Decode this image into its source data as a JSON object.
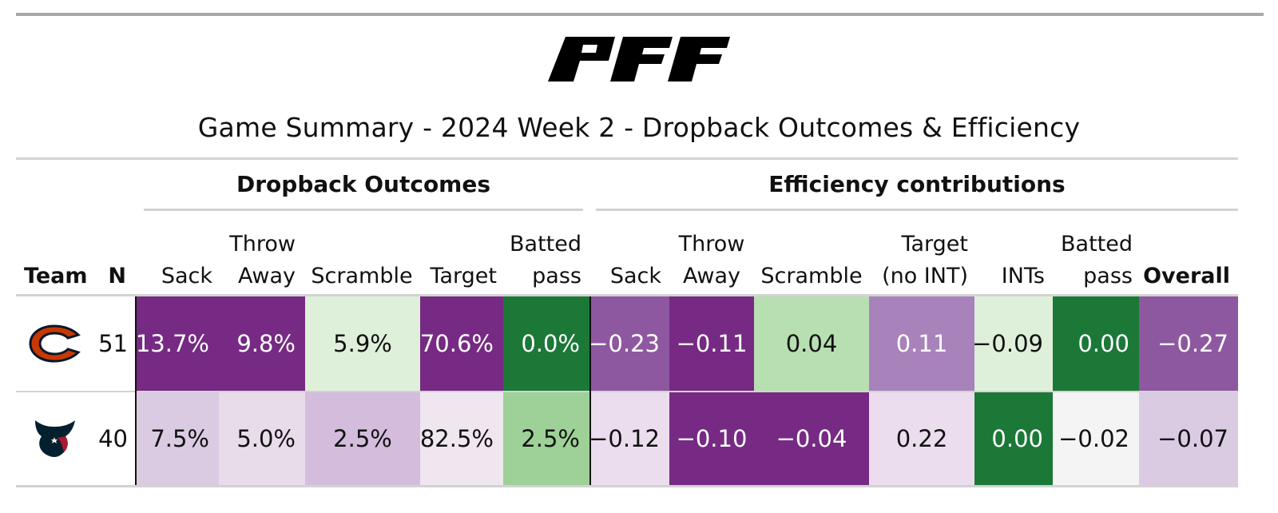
{
  "logo": {
    "name": "PFF",
    "color": "#000000"
  },
  "title": "Game Summary - 2024 Week 2 - Dropback Outcomes & Efficiency",
  "spanners": {
    "dropback": "Dropback Outcomes",
    "efficiency": "Efficiency contributions"
  },
  "columns": {
    "team": "Team",
    "n": "N",
    "sack": "Sack",
    "throw_away": {
      "line1": "Throw",
      "line2": "Away"
    },
    "scramble": "Scramble",
    "target": "Target",
    "batted": {
      "line1": "Batted",
      "line2": "pass"
    },
    "eff_sack": "Sack",
    "eff_throw_away": {
      "line1": "Throw",
      "line2": "Away"
    },
    "eff_scramble": "Scramble",
    "eff_target": {
      "line1": "Target",
      "line2": "(no INT)"
    },
    "eff_ints": "INTs",
    "eff_batted": {
      "line1": "Batted",
      "line2": "pass"
    },
    "overall": "Overall"
  },
  "rows": [
    {
      "team_icon": "chicago-bears-logo",
      "n": "51",
      "cells": [
        {
          "text": "13.7%",
          "bg": "#762a83",
          "fg": "#ffffff"
        },
        {
          "text": "9.8%",
          "bg": "#762a83",
          "fg": "#ffffff"
        },
        {
          "text": "5.9%",
          "bg": "#dff0da",
          "fg": "#111111"
        },
        {
          "text": "70.6%",
          "bg": "#762a83",
          "fg": "#ffffff"
        },
        {
          "text": "0.0%",
          "bg": "#1b7837",
          "fg": "#ffffff"
        },
        {
          "text": "−0.23",
          "bg": "#8e58a0",
          "fg": "#ffffff"
        },
        {
          "text": "−0.11",
          "bg": "#762a83",
          "fg": "#ffffff"
        },
        {
          "text": "0.04",
          "bg": "#b8dfb1",
          "fg": "#111111"
        },
        {
          "text": "0.11",
          "bg": "#a882ba",
          "fg": "#ffffff"
        },
        {
          "text": "−0.09",
          "bg": "#dff0da",
          "fg": "#111111"
        },
        {
          "text": "0.00",
          "bg": "#1b7837",
          "fg": "#ffffff"
        },
        {
          "text": "−0.27",
          "bg": "#8e58a0",
          "fg": "#ffffff"
        }
      ]
    },
    {
      "team_icon": "houston-texans-logo",
      "n": "40",
      "cells": [
        {
          "text": "7.5%",
          "bg": "#dacbe3",
          "fg": "#111111"
        },
        {
          "text": "5.0%",
          "bg": "#e8dbea",
          "fg": "#111111"
        },
        {
          "text": "2.5%",
          "bg": "#d3bcdc",
          "fg": "#111111"
        },
        {
          "text": "82.5%",
          "bg": "#efe6f0",
          "fg": "#111111"
        },
        {
          "text": "2.5%",
          "bg": "#9dd197",
          "fg": "#111111"
        },
        {
          "text": "−0.12",
          "bg": "#ebdded",
          "fg": "#111111"
        },
        {
          "text": "−0.10",
          "bg": "#762a83",
          "fg": "#ffffff"
        },
        {
          "text": "−0.04",
          "bg": "#762a83",
          "fg": "#ffffff"
        },
        {
          "text": "0.22",
          "bg": "#ebdded",
          "fg": "#111111"
        },
        {
          "text": "0.00",
          "bg": "#1b7837",
          "fg": "#ffffff"
        },
        {
          "text": "−0.02",
          "bg": "#f4f4f4",
          "fg": "#111111"
        },
        {
          "text": "−0.07",
          "bg": "#dacbe3",
          "fg": "#111111"
        }
      ]
    }
  ]
}
